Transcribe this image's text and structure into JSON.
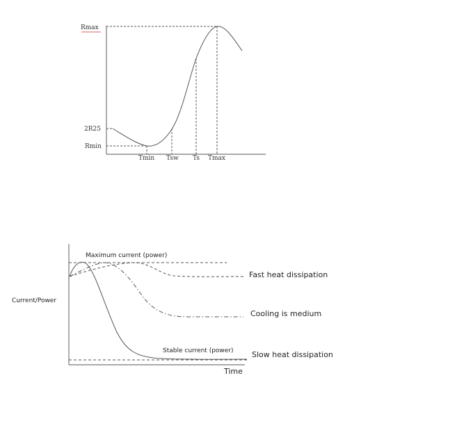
{
  "chart_data": [
    {
      "type": "line",
      "title": "",
      "xlabel": "",
      "ylabel": "",
      "x_ticks": [
        "Tmin",
        "Tsw",
        "Ts",
        "Tmax"
      ],
      "y_ticks": [
        "Rmax",
        "2R25",
        "Rmin"
      ],
      "series": [
        {
          "values": [
            0.4,
            0.33,
            0.26,
            0.2,
            0.2,
            0.25,
            0.45,
            0.75,
            0.98,
            0.9
          ]
        }
      ]
    },
    {
      "type": "line",
      "title": "",
      "xlabel": "Time",
      "ylabel": "Current/Power",
      "annotations": [
        "Maximum current (power)",
        "Stable current (power)"
      ],
      "series": [
        {
          "name": "Fast heat dissipation",
          "values": [
            0.79,
            0.84,
            0.88,
            0.9,
            0.91,
            0.91,
            0.89,
            0.82,
            0.8,
            0.8,
            0.8
          ]
        },
        {
          "name": "Cooling is medium",
          "values": [
            0.78,
            0.84,
            0.9,
            0.88,
            0.72,
            0.5,
            0.41,
            0.4,
            0.4,
            0.4,
            0.4
          ]
        },
        {
          "name": "Slow heat dissipation",
          "values": [
            0.79,
            0.93,
            0.62,
            0.25,
            0.07,
            0.03,
            0.03,
            0.02,
            0.02,
            0.02,
            0.02
          ]
        }
      ]
    }
  ]
}
